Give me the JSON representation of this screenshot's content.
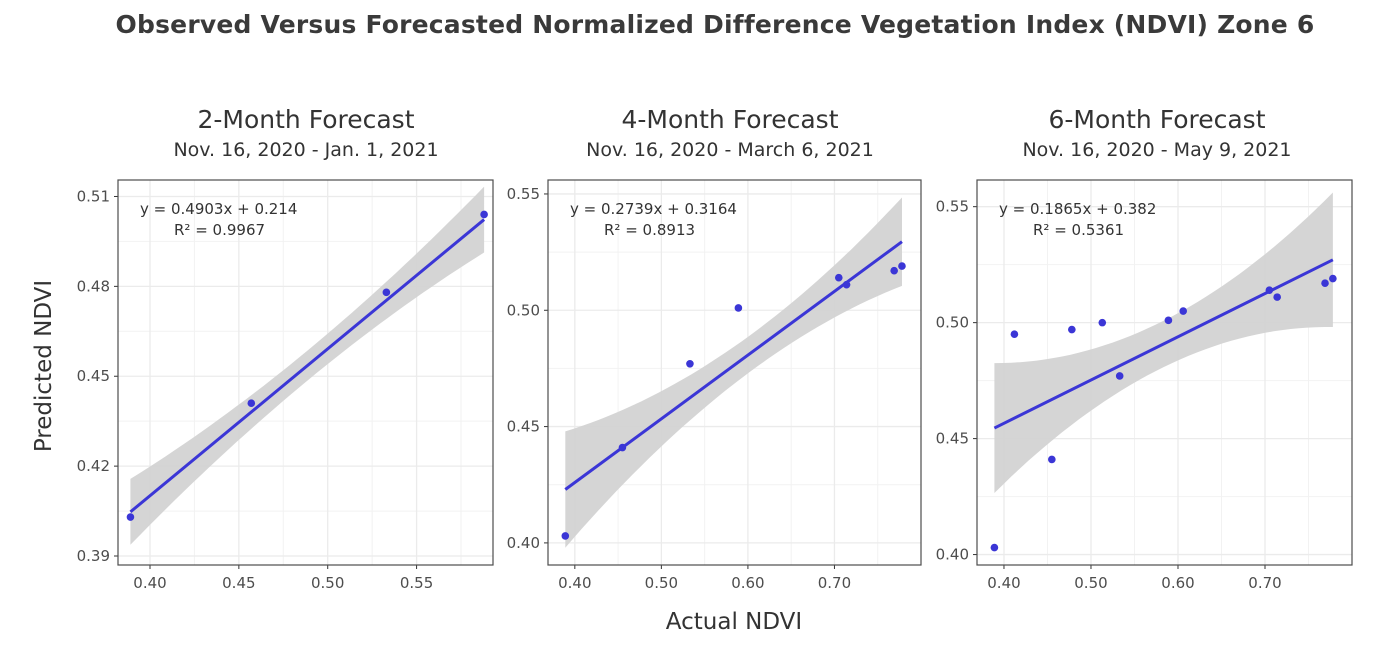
{
  "title": "Observed Versus Forecasted Normalized Difference Vegetation Index (NDVI) Zone 6",
  "ylabel": "Predicted NDVI",
  "xlabel": "Actual NDVI",
  "colors": {
    "points": "#3b36d6",
    "line": "#3b36d6",
    "band": "#d3d3d3",
    "grid": "#ebebeb",
    "border": "#4d4d4d"
  },
  "chart_data": [
    {
      "type": "scatter",
      "title": "2-Month Forecast",
      "subtitle": "Nov. 16, 2020 - Jan. 1, 2021",
      "equation": "y = 0.4903x + 0.214",
      "r2": "R² = 0.9967",
      "xlim": [
        0.382,
        0.593
      ],
      "ylim": [
        0.387,
        0.5155
      ],
      "xticks": [
        0.4,
        0.45,
        0.5,
        0.55
      ],
      "xtick_labels": [
        "0.40",
        "0.45",
        "0.50",
        "0.55"
      ],
      "yticks": [
        0.39,
        0.42,
        0.45,
        0.48,
        0.51
      ],
      "ytick_labels": [
        "0.39",
        "0.42",
        "0.45",
        "0.48",
        "0.51"
      ],
      "grid": true,
      "slope": 0.4903,
      "intercept": 0.214,
      "fit_x": [
        0.389,
        0.588
      ],
      "band_half_width": [
        0.011,
        0.005,
        0.011
      ],
      "points": [
        [
          0.389,
          0.403
        ],
        [
          0.457,
          0.441
        ],
        [
          0.533,
          0.478
        ],
        [
          0.588,
          0.504
        ]
      ]
    },
    {
      "type": "scatter",
      "title": "4-Month Forecast",
      "subtitle": "Nov. 16, 2020 - March 6, 2021",
      "equation": "y = 0.2739x + 0.3164",
      "r2": "R² = 0.8913",
      "xlim": [
        0.369,
        0.8
      ],
      "ylim": [
        0.3905,
        0.556
      ],
      "xticks": [
        0.4,
        0.5,
        0.6,
        0.7
      ],
      "xtick_labels": [
        "0.40",
        "0.50",
        "0.60",
        "0.70"
      ],
      "yticks": [
        0.4,
        0.45,
        0.5,
        0.55
      ],
      "ytick_labels": [
        "0.40",
        "0.45",
        "0.50",
        "0.55"
      ],
      "grid": true,
      "slope": 0.2739,
      "intercept": 0.3164,
      "fit_x": [
        0.389,
        0.778
      ],
      "band_half_width": [
        0.025,
        0.008,
        0.019
      ],
      "points": [
        [
          0.389,
          0.403
        ],
        [
          0.455,
          0.441
        ],
        [
          0.533,
          0.477
        ],
        [
          0.589,
          0.501
        ],
        [
          0.705,
          0.514
        ],
        [
          0.714,
          0.511
        ],
        [
          0.769,
          0.517
        ],
        [
          0.778,
          0.519
        ]
      ]
    },
    {
      "type": "scatter",
      "title": "6-Month Forecast",
      "subtitle": "Nov. 16, 2020 - May 9, 2021",
      "equation": "y = 0.1865x + 0.382",
      "r2": "R² = 0.5361",
      "xlim": [
        0.369,
        0.8
      ],
      "ylim": [
        0.3955,
        0.5615
      ],
      "xticks": [
        0.4,
        0.5,
        0.6,
        0.7
      ],
      "xtick_labels": [
        "0.40",
        "0.50",
        "0.60",
        "0.70"
      ],
      "yticks": [
        0.4,
        0.45,
        0.5,
        0.55
      ],
      "ytick_labels": [
        "0.40",
        "0.45",
        "0.50",
        "0.55"
      ],
      "grid": true,
      "slope": 0.1865,
      "intercept": 0.382,
      "fit_x": [
        0.389,
        0.778
      ],
      "band_half_width": [
        0.028,
        0.01,
        0.029
      ],
      "points": [
        [
          0.389,
          0.403
        ],
        [
          0.412,
          0.495
        ],
        [
          0.455,
          0.441
        ],
        [
          0.478,
          0.497
        ],
        [
          0.513,
          0.5
        ],
        [
          0.533,
          0.477
        ],
        [
          0.589,
          0.501
        ],
        [
          0.606,
          0.505
        ],
        [
          0.705,
          0.514
        ],
        [
          0.714,
          0.511
        ],
        [
          0.769,
          0.517
        ],
        [
          0.778,
          0.519
        ]
      ]
    }
  ]
}
